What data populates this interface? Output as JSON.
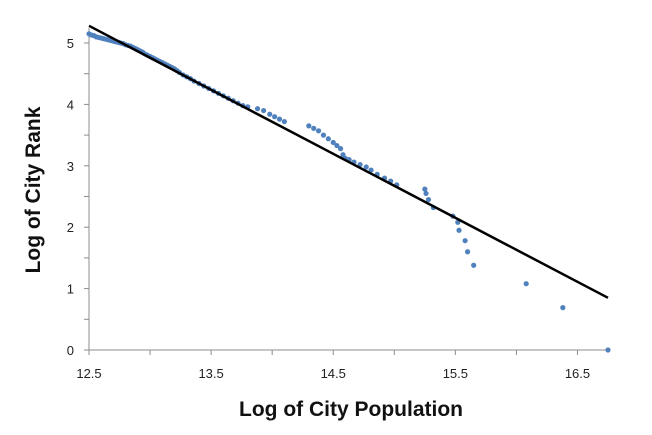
{
  "chart_data": {
    "type": "scatter",
    "xlabel": "Log of City Population",
    "ylabel": "Log of City Rank",
    "xlim": [
      12.5,
      16.75
    ],
    "ylim": [
      0,
      5.3
    ],
    "x_ticks": [
      12.5,
      13.5,
      14.5,
      15.5,
      16.5
    ],
    "x_tick_labels": [
      "12.5",
      "13.5",
      "14.5",
      "15.5",
      "16.5"
    ],
    "y_ticks": [
      0,
      1,
      2,
      3,
      4,
      5
    ],
    "y_tick_labels": [
      "0",
      "1",
      "2",
      "3",
      "4",
      "5"
    ],
    "grid": false,
    "legend": "none",
    "marker_color": "#4f81bd",
    "line_color": "#000000",
    "trendline": {
      "x": [
        12.5,
        16.75
      ],
      "y": [
        5.28,
        0.85
      ]
    },
    "series": [
      {
        "points": [
          [
            12.5,
            5.15
          ],
          [
            12.52,
            5.13
          ],
          [
            12.54,
            5.12
          ],
          [
            12.56,
            5.1
          ],
          [
            12.58,
            5.09
          ],
          [
            12.6,
            5.08
          ],
          [
            12.62,
            5.07
          ],
          [
            12.64,
            5.06
          ],
          [
            12.66,
            5.05
          ],
          [
            12.68,
            5.04
          ],
          [
            12.7,
            5.03
          ],
          [
            12.72,
            5.02
          ],
          [
            12.74,
            5.01
          ],
          [
            12.76,
            5.0
          ],
          [
            12.78,
            4.99
          ],
          [
            12.8,
            4.97
          ],
          [
            12.82,
            4.96
          ],
          [
            12.84,
            4.95
          ],
          [
            12.86,
            4.93
          ],
          [
            12.88,
            4.91
          ],
          [
            12.9,
            4.89
          ],
          [
            12.92,
            4.87
          ],
          [
            12.94,
            4.85
          ],
          [
            12.96,
            4.82
          ],
          [
            12.98,
            4.8
          ],
          [
            13.0,
            4.78
          ],
          [
            13.02,
            4.76
          ],
          [
            13.04,
            4.74
          ],
          [
            13.06,
            4.72
          ],
          [
            13.08,
            4.7
          ],
          [
            13.1,
            4.68
          ],
          [
            13.12,
            4.66
          ],
          [
            13.14,
            4.64
          ],
          [
            13.16,
            4.62
          ],
          [
            13.18,
            4.6
          ],
          [
            13.2,
            4.58
          ],
          [
            13.22,
            4.55
          ],
          [
            13.24,
            4.52
          ],
          [
            13.27,
            4.48
          ],
          [
            13.3,
            4.45
          ],
          [
            13.33,
            4.42
          ],
          [
            13.36,
            4.38
          ],
          [
            13.4,
            4.34
          ],
          [
            13.44,
            4.3
          ],
          [
            13.48,
            4.26
          ],
          [
            13.52,
            4.22
          ],
          [
            13.56,
            4.18
          ],
          [
            13.6,
            4.14
          ],
          [
            13.64,
            4.1
          ],
          [
            13.68,
            4.06
          ],
          [
            13.72,
            4.02
          ],
          [
            13.76,
            3.98
          ],
          [
            13.8,
            3.96
          ],
          [
            13.88,
            3.93
          ],
          [
            13.93,
            3.9
          ],
          [
            13.98,
            3.84
          ],
          [
            14.02,
            3.8
          ],
          [
            14.06,
            3.76
          ],
          [
            14.1,
            3.72
          ],
          [
            14.3,
            3.65
          ],
          [
            14.34,
            3.61
          ],
          [
            14.38,
            3.57
          ],
          [
            14.42,
            3.5
          ],
          [
            14.46,
            3.44
          ],
          [
            14.5,
            3.38
          ],
          [
            14.53,
            3.33
          ],
          [
            14.56,
            3.28
          ],
          [
            14.58,
            3.18
          ],
          [
            14.6,
            3.12
          ],
          [
            14.63,
            3.1
          ],
          [
            14.67,
            3.06
          ],
          [
            14.72,
            3.02
          ],
          [
            14.77,
            2.98
          ],
          [
            14.81,
            2.93
          ],
          [
            14.86,
            2.86
          ],
          [
            14.92,
            2.8
          ],
          [
            14.97,
            2.75
          ],
          [
            15.02,
            2.69
          ],
          [
            15.25,
            2.62
          ],
          [
            15.26,
            2.55
          ],
          [
            15.28,
            2.45
          ],
          [
            15.32,
            2.32
          ],
          [
            15.48,
            2.18
          ],
          [
            15.52,
            2.08
          ],
          [
            15.53,
            1.95
          ],
          [
            15.58,
            1.78
          ],
          [
            15.6,
            1.6
          ],
          [
            15.65,
            1.38
          ],
          [
            16.08,
            1.08
          ],
          [
            16.38,
            0.69
          ],
          [
            16.75,
            0.0
          ]
        ]
      }
    ]
  }
}
